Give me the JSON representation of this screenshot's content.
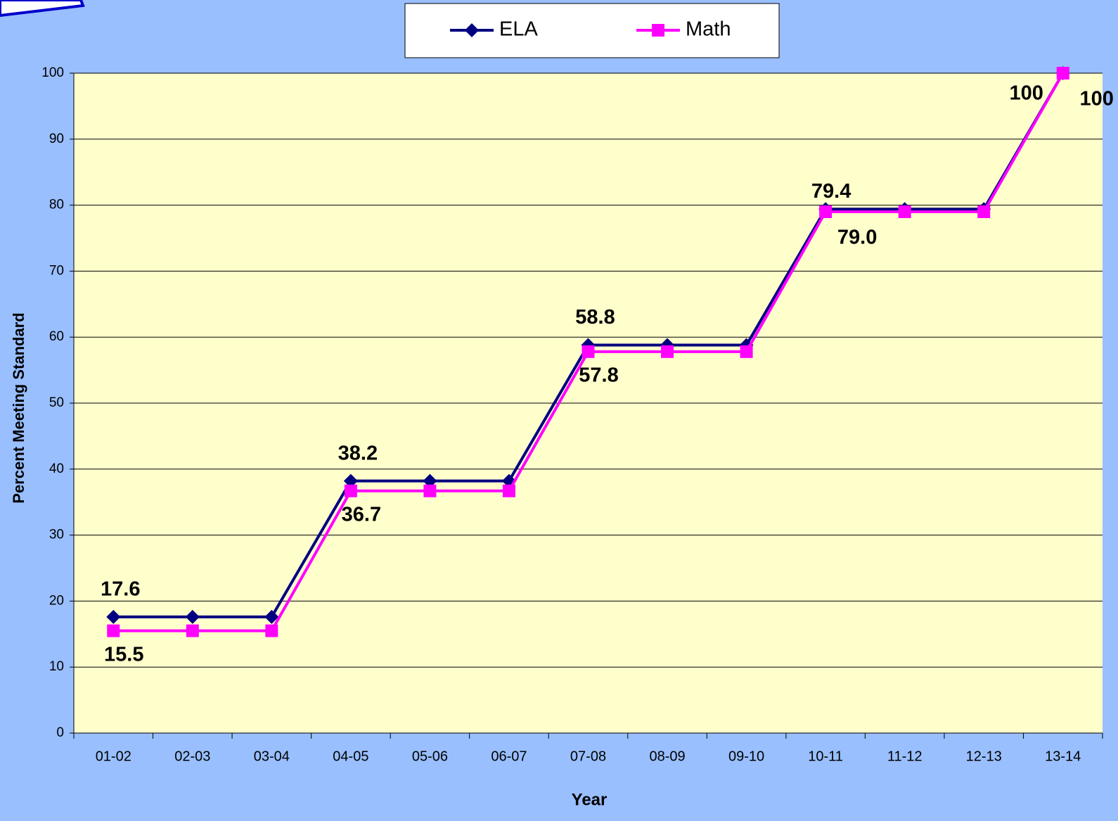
{
  "chart_data": {
    "type": "line",
    "x_label": "Year",
    "y_label": "Percent Meeting Standard",
    "categories": [
      "01-02",
      "02-03",
      "03-04",
      "04-05",
      "05-06",
      "06-07",
      "07-08",
      "08-09",
      "09-10",
      "10-11",
      "11-12",
      "12-13",
      "13-14"
    ],
    "series": [
      {
        "name": "ELA",
        "color": "#000080",
        "marker": "diamond",
        "values": [
          17.6,
          17.6,
          17.6,
          38.2,
          38.2,
          38.2,
          58.8,
          58.8,
          58.8,
          79.4,
          79.4,
          79.4,
          100
        ],
        "value_labels": [
          "17.6",
          null,
          null,
          "38.2",
          null,
          null,
          "58.8",
          null,
          null,
          "79.4",
          null,
          null,
          "100"
        ]
      },
      {
        "name": "Math",
        "color": "#ff00ff",
        "marker": "square",
        "values": [
          15.5,
          15.5,
          15.5,
          36.7,
          36.7,
          36.7,
          57.8,
          57.8,
          57.8,
          79.0,
          79.0,
          79.0,
          100
        ],
        "value_labels": [
          "15.5",
          null,
          null,
          "36.7",
          null,
          null,
          "57.8",
          null,
          null,
          "79.0",
          null,
          null,
          "100"
        ]
      }
    ],
    "ylim": [
      0,
      100
    ],
    "yticks": [
      0,
      10,
      20,
      30,
      40,
      50,
      60,
      70,
      80,
      90,
      100
    ],
    "grid": true,
    "legend": "top"
  }
}
